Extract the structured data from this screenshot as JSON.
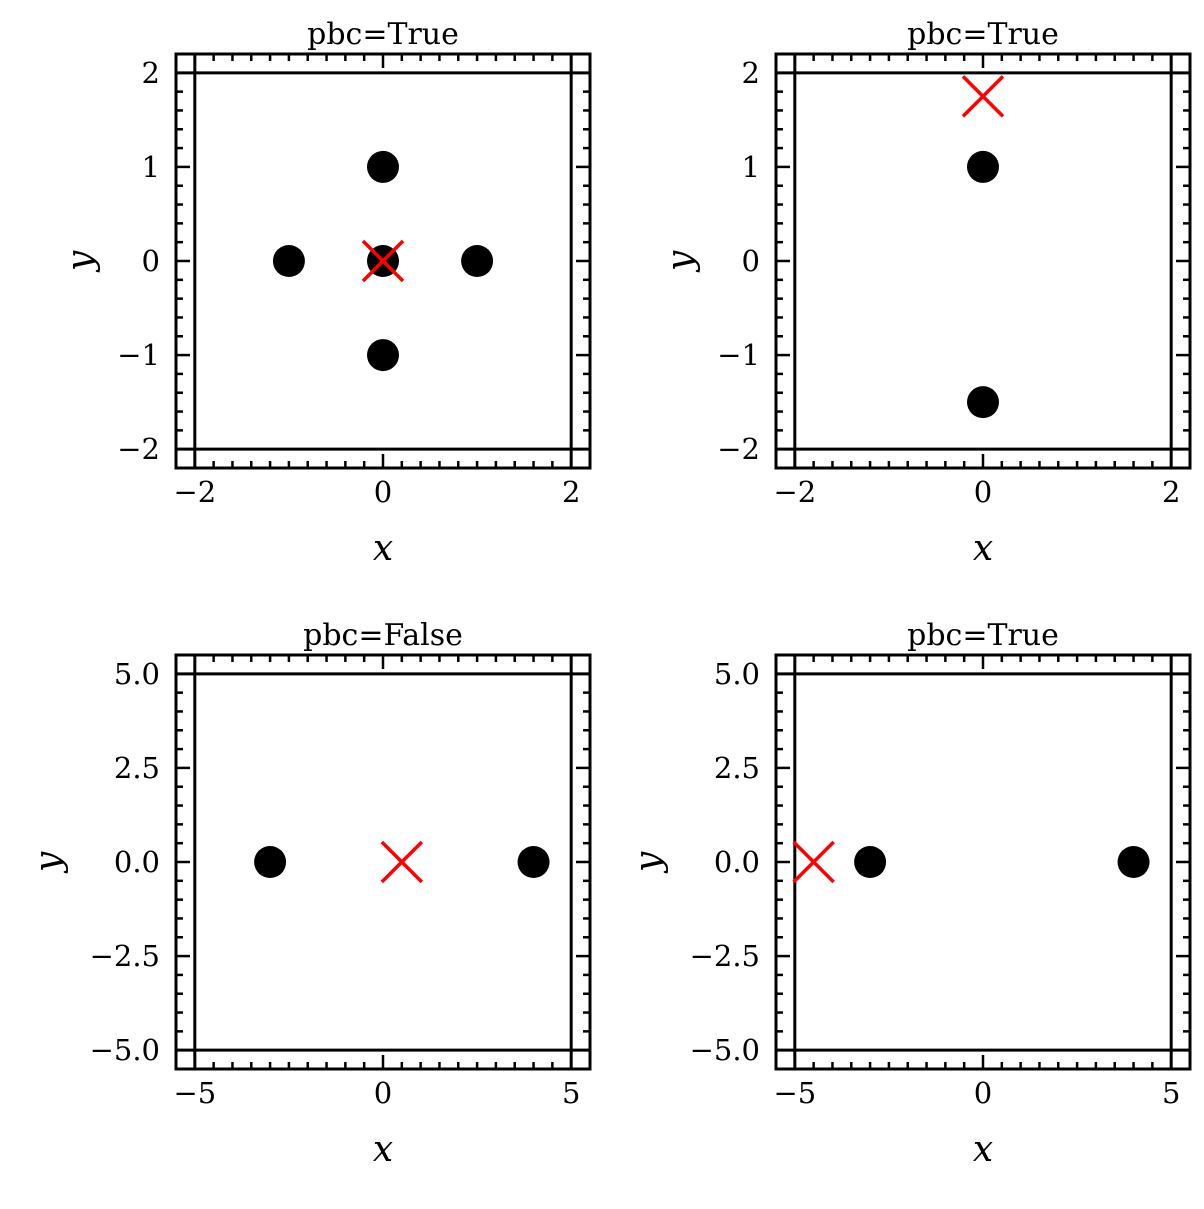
{
  "chart_data": [
    {
      "type": "scatter",
      "title": "pbc=True",
      "xlabel": "x",
      "ylabel": "y",
      "xlim": [
        -2.2,
        2.2
      ],
      "ylim": [
        -2.2,
        2.2
      ],
      "box": [
        -2,
        2
      ],
      "xticks": [
        -2,
        0,
        2
      ],
      "xtick_labels": [
        "−2",
        "0",
        "2"
      ],
      "yticks": [
        -2,
        -1,
        0,
        1,
        2
      ],
      "ytick_labels": [
        "−2",
        "−1",
        "0",
        "1",
        "2"
      ],
      "minor_step": 0.2,
      "points": [
        {
          "x": 0,
          "y": 1
        },
        {
          "x": -1,
          "y": 0
        },
        {
          "x": 0,
          "y": 0
        },
        {
          "x": 1,
          "y": 0
        },
        {
          "x": 0,
          "y": -1
        }
      ],
      "marker": {
        "x": 0,
        "y": 0
      },
      "grid": false
    },
    {
      "type": "scatter",
      "title": "pbc=True",
      "xlabel": "x",
      "ylabel": "y",
      "xlim": [
        -2.2,
        2.2
      ],
      "ylim": [
        -2.2,
        2.2
      ],
      "box": [
        -2,
        2
      ],
      "xticks": [
        -2,
        0,
        2
      ],
      "xtick_labels": [
        "−2",
        "0",
        "2"
      ],
      "yticks": [
        -2,
        -1,
        0,
        1,
        2
      ],
      "ytick_labels": [
        "−2",
        "−1",
        "0",
        "1",
        "2"
      ],
      "minor_step": 0.2,
      "points": [
        {
          "x": 0,
          "y": 1
        },
        {
          "x": 0,
          "y": -1.5
        }
      ],
      "marker": {
        "x": 0,
        "y": 1.75
      },
      "grid": false
    },
    {
      "type": "scatter",
      "title": "pbc=False",
      "xlabel": "x",
      "ylabel": "y",
      "xlim": [
        -5.5,
        5.5
      ],
      "ylim": [
        -5.5,
        5.5
      ],
      "box": [
        -5,
        5
      ],
      "xticks": [
        -5,
        0,
        5
      ],
      "xtick_labels": [
        "−5",
        "0",
        "5"
      ],
      "yticks": [
        -5,
        -2.5,
        0,
        2.5,
        5
      ],
      "ytick_labels": [
        "−5.0",
        "−2.5",
        "0.0",
        "2.5",
        "5.0"
      ],
      "minor_step": 0.5,
      "points": [
        {
          "x": -3,
          "y": 0
        },
        {
          "x": 4,
          "y": 0
        }
      ],
      "marker": {
        "x": 0.5,
        "y": 0
      },
      "grid": false
    },
    {
      "type": "scatter",
      "title": "pbc=True",
      "xlabel": "x",
      "ylabel": "y",
      "xlim": [
        -5.5,
        5.5
      ],
      "ylim": [
        -5.5,
        5.5
      ],
      "box": [
        -5,
        5
      ],
      "xticks": [
        -5,
        0,
        5
      ],
      "xtick_labels": [
        "−5",
        "0",
        "5"
      ],
      "yticks": [
        -5,
        -2.5,
        0,
        2.5,
        5
      ],
      "ytick_labels": [
        "−5.0",
        "−2.5",
        "0.0",
        "2.5",
        "5.0"
      ],
      "minor_step": 0.5,
      "points": [
        {
          "x": -3,
          "y": 0
        },
        {
          "x": 4,
          "y": 0
        }
      ],
      "marker": {
        "x": -4.5,
        "y": 0
      },
      "grid": false
    }
  ],
  "colors": {
    "points": "#000000",
    "marker": "#ff0000",
    "axes": "#000000",
    "background": "#ffffff"
  }
}
